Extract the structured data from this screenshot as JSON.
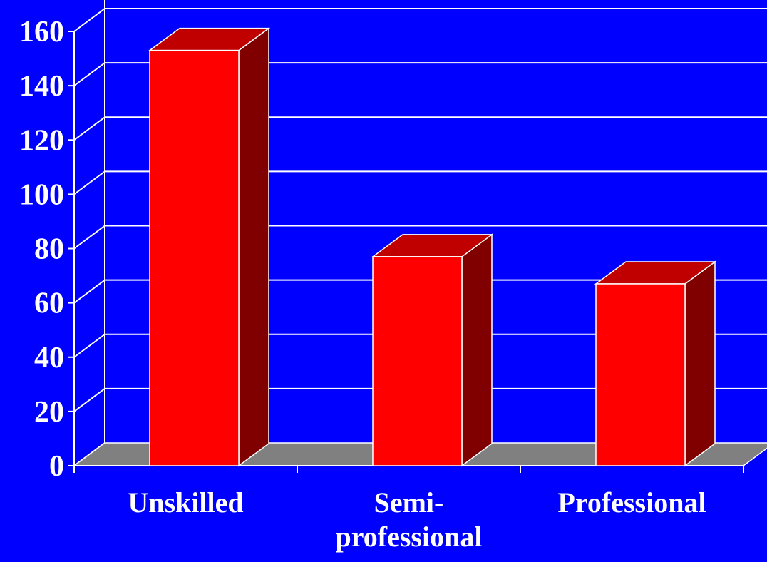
{
  "colors": {
    "background": "#0000ff",
    "grid": "#ffffff",
    "floor": "#808080",
    "bar_front": "#ff0000",
    "bar_top": "#c00000",
    "bar_side": "#800000"
  },
  "chart_data": {
    "type": "bar",
    "style": "3d",
    "categories": [
      "Unskilled",
      "Semi-professional",
      "Professional"
    ],
    "category_lines": [
      [
        "Unskilled"
      ],
      [
        "Semi-",
        "professional"
      ],
      [
        "Professional"
      ]
    ],
    "values": [
      153,
      77,
      67
    ],
    "ylim": [
      0,
      160
    ],
    "yticks": [
      "0",
      "20",
      "40",
      "60",
      "80",
      "100",
      "120",
      "140",
      "160"
    ],
    "grid": true,
    "legend": "none"
  }
}
